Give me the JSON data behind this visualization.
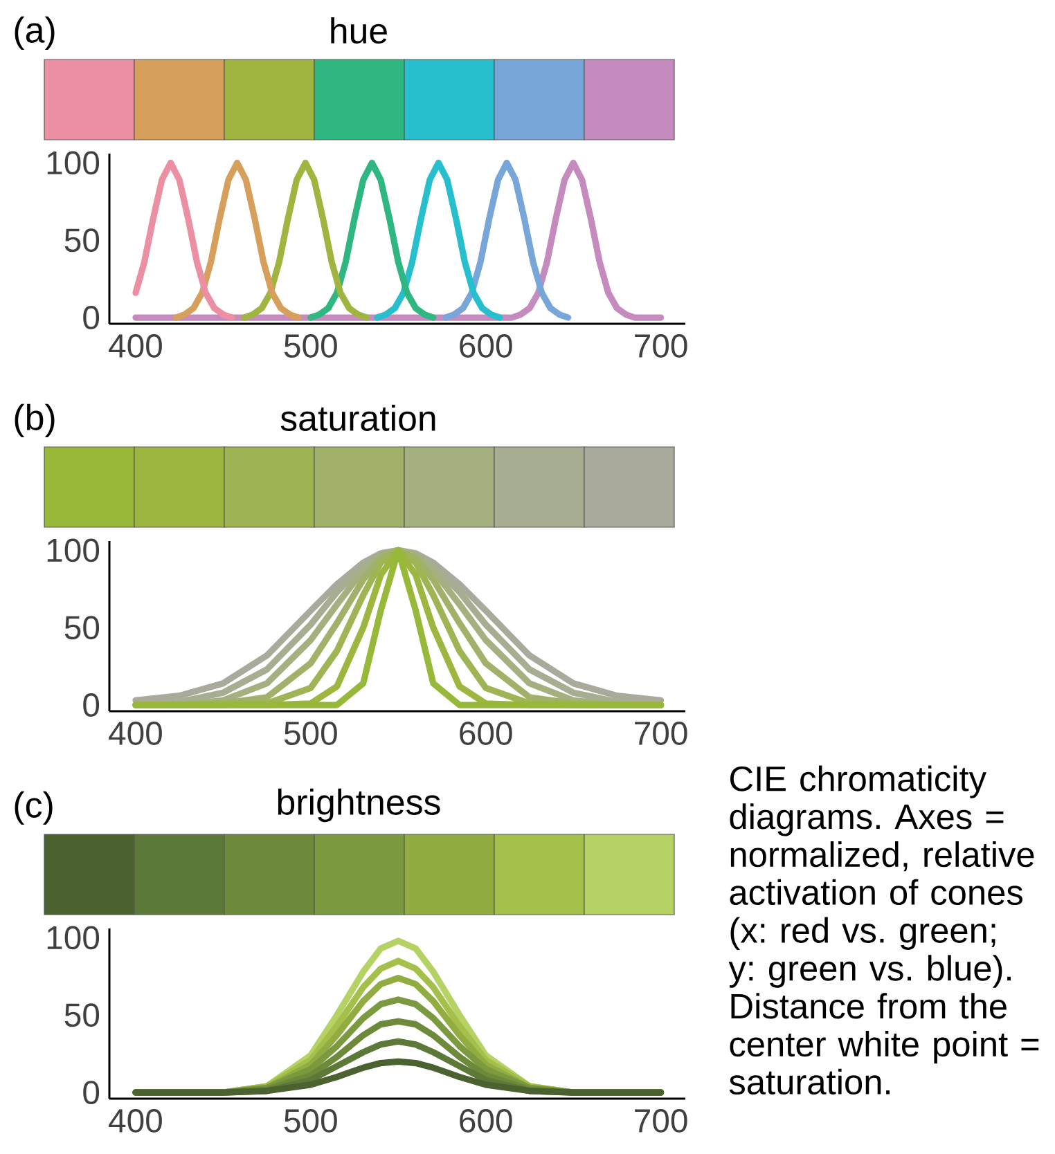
{
  "chart_data": [
    {
      "type": "line",
      "title": "hue",
      "annotations": [
        "(a)"
      ],
      "xlim": [
        385,
        714
      ],
      "ylim": [
        -4,
        106
      ],
      "xticks": [
        400,
        500,
        600,
        700
      ],
      "yticks": [
        0,
        50,
        100
      ],
      "series": [
        {
          "color": "#ec8fa3",
          "x": [
            400,
            405,
            410,
            415,
            420,
            425,
            430,
            435,
            440,
            445,
            450,
            455
          ],
          "values": [
            16,
            36,
            64,
            89,
            100,
            89,
            64,
            36,
            16,
            6,
            2,
            0
          ]
        },
        {
          "color": "#d6a05c",
          "x": [
            423,
            428,
            433,
            438,
            443,
            448,
            453,
            458,
            463,
            468,
            473,
            478,
            483,
            488,
            493
          ],
          "values": [
            0,
            2,
            6,
            16,
            36,
            64,
            89,
            100,
            89,
            64,
            36,
            16,
            6,
            2,
            0
          ]
        },
        {
          "color": "#9fb540",
          "x": [
            462,
            467,
            472,
            477,
            482,
            487,
            492,
            497,
            502,
            507,
            512,
            517,
            522,
            527,
            532
          ],
          "values": [
            0,
            2,
            6,
            16,
            36,
            64,
            89,
            100,
            89,
            64,
            36,
            16,
            6,
            2,
            0
          ]
        },
        {
          "color": "#30b680",
          "x": [
            500,
            505,
            510,
            515,
            520,
            525,
            530,
            535,
            540,
            545,
            550,
            555,
            560,
            565,
            570
          ],
          "values": [
            0,
            2,
            6,
            16,
            36,
            64,
            89,
            100,
            89,
            64,
            36,
            16,
            6,
            2,
            0
          ]
        },
        {
          "color": "#27bfcd",
          "x": [
            538,
            543,
            548,
            553,
            558,
            563,
            568,
            573,
            578,
            583,
            588,
            593,
            598,
            603,
            608
          ],
          "values": [
            0,
            2,
            6,
            16,
            36,
            64,
            89,
            100,
            89,
            64,
            36,
            16,
            6,
            2,
            0
          ]
        },
        {
          "color": "#79a6d9",
          "x": [
            577,
            582,
            587,
            592,
            597,
            602,
            607,
            612,
            617,
            622,
            627,
            632,
            637,
            642,
            647
          ],
          "values": [
            0,
            2,
            6,
            16,
            36,
            64,
            89,
            100,
            89,
            64,
            36,
            16,
            6,
            2,
            0
          ]
        },
        {
          "color": "#c58bbf",
          "x": [
            400,
            615,
            620,
            625,
            630,
            635,
            640,
            645,
            650,
            655,
            660,
            665,
            670,
            675,
            680,
            685,
            700
          ],
          "values": [
            0,
            0,
            2,
            6,
            16,
            36,
            64,
            89,
            100,
            89,
            64,
            36,
            16,
            6,
            2,
            0,
            0
          ]
        }
      ]
    },
    {
      "type": "line",
      "title": "saturation",
      "annotations": [
        "(b)"
      ],
      "xlim": [
        385,
        714
      ],
      "ylim": [
        -4,
        106
      ],
      "xticks": [
        400,
        500,
        600,
        700
      ],
      "yticks": [
        0,
        50,
        100
      ],
      "x": [
        400,
        425,
        450,
        475,
        500,
        515,
        530,
        540,
        550,
        560,
        570,
        585,
        600,
        625,
        650,
        675,
        700
      ],
      "series": [
        {
          "color": "#98b83a",
          "values": [
            0,
            0,
            0,
            0,
            0,
            0,
            14,
            61,
            100,
            61,
            14,
            0,
            0,
            0,
            0,
            0,
            0
          ]
        },
        {
          "color": "#9db640",
          "values": [
            0,
            0,
            0,
            0,
            1,
            12,
            50,
            84,
            100,
            84,
            50,
            12,
            1,
            0,
            0,
            0,
            0
          ]
        },
        {
          "color": "#9fb454",
          "values": [
            0,
            0,
            0,
            1,
            11,
            35,
            71,
            92,
            100,
            92,
            71,
            35,
            11,
            1,
            0,
            0,
            0
          ]
        },
        {
          "color": "#a1b169",
          "values": [
            0,
            0,
            1,
            5,
            27,
            53,
            81,
            95,
            100,
            95,
            81,
            53,
            27,
            5,
            1,
            0,
            0
          ]
        },
        {
          "color": "#a4b07f",
          "values": [
            0,
            0,
            3,
            14,
            42,
            65,
            87,
            97,
            100,
            97,
            87,
            65,
            42,
            14,
            3,
            0,
            0
          ]
        },
        {
          "color": "#a6ad90",
          "values": [
            0,
            2,
            8,
            23,
            52,
            73,
            90,
            97,
            100,
            97,
            90,
            73,
            52,
            23,
            8,
            2,
            0
          ]
        },
        {
          "color": "#aaaa9c",
          "values": [
            3,
            6,
            14,
            32,
            61,
            78,
            92,
            98,
            100,
            98,
            92,
            78,
            61,
            32,
            14,
            6,
            3
          ]
        }
      ]
    },
    {
      "type": "line",
      "title": "brightness",
      "annotations": [
        "(c)",
        "CIE chromaticity diagrams. Axes = normalized, relative activation of cones (x: red vs. green; y: green vs. blue). Distance from the center white point = saturation."
      ],
      "xlim": [
        385,
        714
      ],
      "ylim": [
        -4,
        106
      ],
      "xticks": [
        400,
        500,
        600,
        700
      ],
      "yticks": [
        0,
        50,
        100
      ],
      "x": [
        400,
        450,
        475,
        500,
        515,
        530,
        540,
        550,
        560,
        570,
        585,
        600,
        625,
        650,
        700
      ],
      "series": [
        {
          "color": "#4b6130",
          "values": [
            0,
            0,
            1,
            5,
            10,
            16,
            19,
            20,
            19,
            16,
            10,
            5,
            1,
            0,
            0
          ]
        },
        {
          "color": "#5c7937",
          "values": [
            0,
            0,
            1,
            8,
            17,
            26,
            31,
            33,
            31,
            26,
            17,
            8,
            1,
            0,
            0
          ]
        },
        {
          "color": "#6d8a3b",
          "values": [
            0,
            0,
            2,
            11,
            23,
            37,
            44,
            46,
            44,
            37,
            23,
            11,
            2,
            0,
            0
          ]
        },
        {
          "color": "#7b993f",
          "values": [
            0,
            0,
            3,
            15,
            30,
            48,
            57,
            60,
            57,
            48,
            30,
            15,
            3,
            0,
            0
          ]
        },
        {
          "color": "#91ad41",
          "values": [
            0,
            0,
            3,
            18,
            37,
            59,
            70,
            74,
            70,
            59,
            37,
            18,
            3,
            0,
            0
          ]
        },
        {
          "color": "#a5c04a",
          "values": [
            0,
            0,
            4,
            21,
            43,
            68,
            80,
            85,
            80,
            68,
            43,
            21,
            4,
            0,
            0
          ]
        },
        {
          "color": "#b5d264",
          "values": [
            0,
            0,
            4,
            24,
            50,
            78,
            93,
            98,
            93,
            78,
            50,
            24,
            4,
            0,
            0
          ]
        }
      ]
    }
  ]
}
